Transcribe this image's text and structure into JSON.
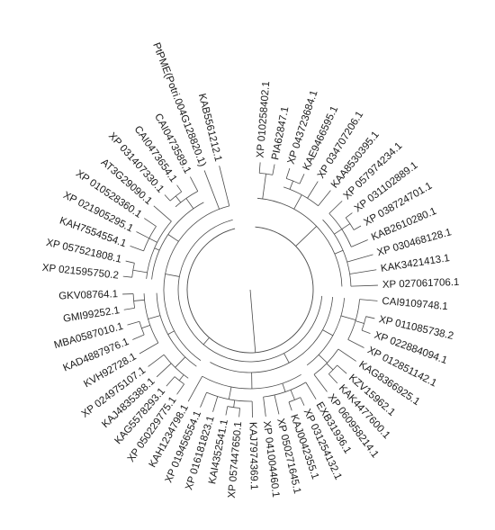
{
  "tree": {
    "layout": "circular",
    "leaves": [
      {
        "label": "XP 010258402.1",
        "angle": -85.5
      },
      {
        "label": "PIA62847.1",
        "angle": -79
      },
      {
        "label": "XP 043723684.1",
        "angle": -72
      },
      {
        "label": "KAE9466595.1",
        "angle": -65
      },
      {
        "label": "XP 034707206.1",
        "angle": -58
      },
      {
        "label": "KAA8530395.1",
        "angle": -51
      },
      {
        "label": "XP 057974234.1",
        "angle": -44
      },
      {
        "label": "XP 031102889.1",
        "angle": -37
      },
      {
        "label": "XP 038724701.1",
        "angle": -30
      },
      {
        "label": "KAB2610280.1",
        "angle": -23
      },
      {
        "label": "XP 030468128.1",
        "angle": -16
      },
      {
        "label": "KAK3421413.1",
        "angle": -9
      },
      {
        "label": "XP 027061706.1",
        "angle": -2
      },
      {
        "label": "CAI9109748.1",
        "angle": 5
      },
      {
        "label": "XP 011085738.2",
        "angle": 13
      },
      {
        "label": "XP 022884094.1",
        "angle": 20
      },
      {
        "label": "XP 012851142.1",
        "angle": 27
      },
      {
        "label": "KAG8366925.1",
        "angle": 34
      },
      {
        "label": "KZV15962.1",
        "angle": 41
      },
      {
        "label": "KAK4477600.1",
        "angle": 47
      },
      {
        "label": "XP 060958214.1",
        "angle": 53
      },
      {
        "label": "EXB31936.1",
        "angle": 59
      },
      {
        "label": "XP 031254132.1",
        "angle": 65
      },
      {
        "label": "KAJ0042355.1",
        "angle": 71
      },
      {
        "label": "XP 050271645.1",
        "angle": 77
      },
      {
        "label": "XP 041004460.1",
        "angle": 83
      },
      {
        "label": "KAJ7974369.1",
        "angle": 89
      },
      {
        "label": "XP 057447650.1",
        "angle": 95
      },
      {
        "label": "KAI4352541.1",
        "angle": 101
      },
      {
        "label": "XP 016181823.1",
        "angle": 107
      },
      {
        "label": "XP 019456554.1",
        "angle": 113
      },
      {
        "label": "KAH1234798.1",
        "angle": 119
      },
      {
        "label": "XP 050229775.1",
        "angle": 125
      },
      {
        "label": "KAG5578293.1",
        "angle": 131
      },
      {
        "label": "KAJ4835388.1",
        "angle": 137
      },
      {
        "label": "XP 024975107.1",
        "angle": 143
      },
      {
        "label": "KVH92728.1",
        "angle": 150
      },
      {
        "label": "KAD4887976.1",
        "angle": 157
      },
      {
        "label": "MBA0587010.1",
        "angle": 164
      },
      {
        "label": "GMI99252.1",
        "angle": 171
      },
      {
        "label": "GKV08764.1",
        "angle": 178
      },
      {
        "label": "XP 021595750.2",
        "angle": 186
      },
      {
        "label": "XP 057521808.1",
        "angle": 193
      },
      {
        "label": "KAH7554554.1",
        "angle": 200
      },
      {
        "label": "XP 021905295.1",
        "angle": 207
      },
      {
        "label": "XP 010528360.1",
        "angle": 214
      },
      {
        "label": "AT3G29090.1",
        "angle": 221
      },
      {
        "label": "XP 031407330.1",
        "angle": 228
      },
      {
        "label": "CAI0473654.1",
        "angle": 235
      },
      {
        "label": "CAI0473589.1",
        "angle": 242
      },
      {
        "label": "PtPME(Potri.004G128820.1)",
        "angle": 249
      },
      {
        "label": "KAB5561212.1",
        "angle": 256
      }
    ],
    "clades": [
      {
        "r": 130,
        "from": 0,
        "to": 1
      },
      {
        "r": 130,
        "from": 2,
        "to": 3
      },
      {
        "r": 120,
        "from": 2,
        "to": 5
      },
      {
        "r": 133,
        "from": 7,
        "to": 8
      },
      {
        "r": 122,
        "from": 6,
        "to": 9
      },
      {
        "r": 112,
        "from": 6,
        "to": 12
      },
      {
        "r": 102,
        "from": 0,
        "to": 12
      },
      {
        "r": 132,
        "from": 14,
        "to": 15
      },
      {
        "r": 122,
        "from": 13,
        "to": 16
      },
      {
        "r": 128,
        "from": 18,
        "to": 19
      },
      {
        "r": 118,
        "from": 17,
        "to": 20
      },
      {
        "r": 105,
        "from": 13,
        "to": 20
      },
      {
        "r": 132,
        "from": 22,
        "to": 23
      },
      {
        "r": 120,
        "from": 21,
        "to": 25
      },
      {
        "r": 132,
        "from": 27,
        "to": 28
      },
      {
        "r": 124,
        "from": 26,
        "to": 30
      },
      {
        "r": 110,
        "from": 21,
        "to": 31
      },
      {
        "r": 92,
        "from": 13,
        "to": 31
      },
      {
        "r": 128,
        "from": 32,
        "to": 33
      },
      {
        "r": 120,
        "from": 32,
        "to": 35
      },
      {
        "r": 128,
        "from": 37,
        "to": 38
      },
      {
        "r": 130,
        "from": 39,
        "to": 40
      },
      {
        "r": 118,
        "from": 36,
        "to": 40
      },
      {
        "r": 104,
        "from": 32,
        "to": 40
      },
      {
        "r": 132,
        "from": 41,
        "to": 42
      },
      {
        "r": 126,
        "from": 43,
        "to": 45
      },
      {
        "r": 116,
        "from": 41,
        "to": 46
      },
      {
        "r": 133,
        "from": 47,
        "to": 48
      },
      {
        "r": 124,
        "from": 47,
        "to": 49
      },
      {
        "r": 110,
        "from": 41,
        "to": 49
      },
      {
        "r": 96,
        "from": 32,
        "to": 51
      },
      {
        "r": 80,
        "from": 13,
        "to": 51
      },
      {
        "r": 70,
        "from": 0,
        "to": 51
      }
    ]
  }
}
